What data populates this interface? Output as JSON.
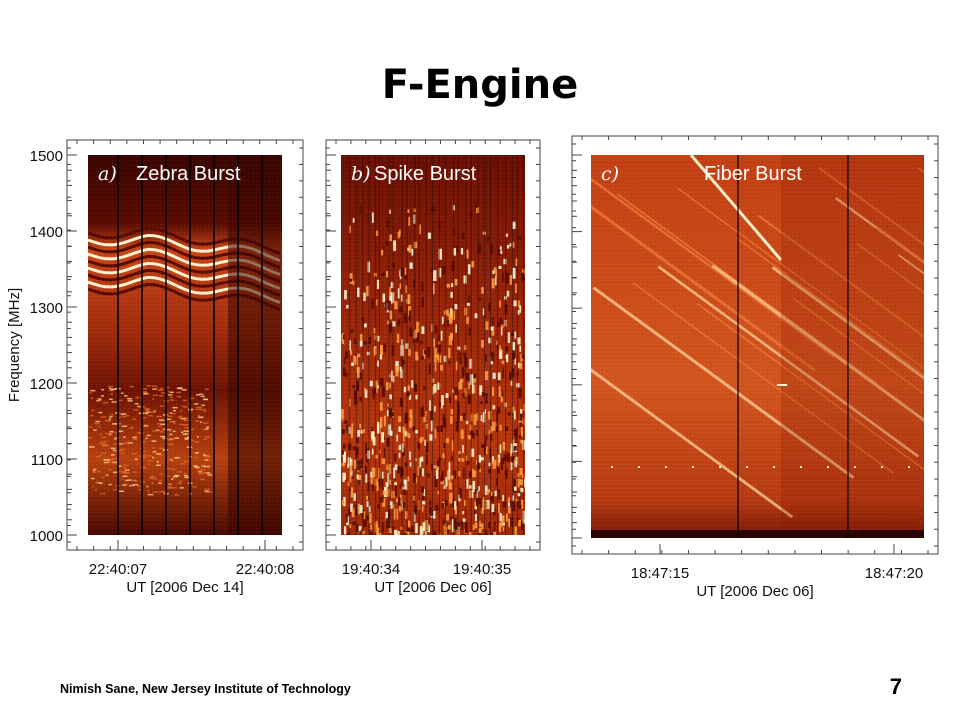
{
  "slide": {
    "title": "F-Engine",
    "footer": "Nimish Sane,  New Jersey Institute of Technology",
    "page_number": "7"
  },
  "colors": {
    "dark": "#3a0500",
    "mid": "#b52f0a",
    "bright": "#ff9a3c",
    "white": "#fff6d0",
    "frame": "#444444"
  },
  "chart_data": [
    {
      "type": "heatmap",
      "panel_label": "a)",
      "title": "Zebra Burst",
      "ylabel": "Frequency [MHz]",
      "xlabel": "UT [2006 Dec 14]",
      "yticks": [
        1000,
        1100,
        1200,
        1300,
        1400,
        1500
      ],
      "ylim": [
        1000,
        1500
      ],
      "xticks": [
        "22:40:07",
        "22:40:08"
      ],
      "pattern": "zebra"
    },
    {
      "type": "heatmap",
      "panel_label": "b)",
      "title": "Spike Burst",
      "xlabel": "UT [2006 Dec 06]",
      "ylim": [
        1000,
        1500
      ],
      "xticks": [
        "19:40:34",
        "19:40:35"
      ],
      "pattern": "spike"
    },
    {
      "type": "heatmap",
      "panel_label": "c)",
      "title": "Fiber Burst",
      "xlabel": "UT [2006 Dec 06]",
      "ylim": [
        1000,
        1500
      ],
      "xticks": [
        "18:47:15",
        "18:47:20"
      ],
      "pattern": "fiber"
    }
  ]
}
